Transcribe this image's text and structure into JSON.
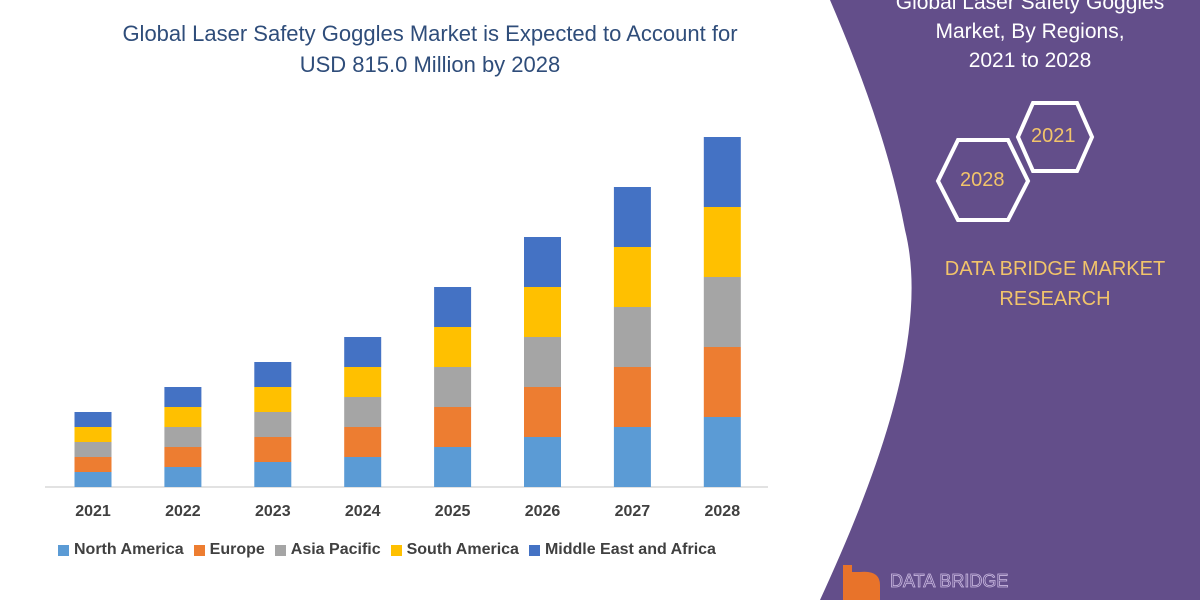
{
  "title_lines": [
    "Global Laser Safety Goggles Market is Expected to Account for",
    "USD 815.0 Million by 2028"
  ],
  "side_panel": {
    "title_lines": [
      "Global Laser Safety Goggles",
      "Market, By Regions,",
      "2021 to 2028"
    ],
    "hex_labels": [
      "2021",
      "2028"
    ],
    "brand_lines": [
      "DATA BRIDGE MARKET",
      "RESEARCH"
    ],
    "logo_text": "DATA BRIDGE",
    "panel_color": "#634e8a",
    "accent_color": "#f2c46a"
  },
  "chart_data": {
    "type": "bar",
    "stacked": true,
    "categories": [
      "2021",
      "2022",
      "2023",
      "2024",
      "2025",
      "2026",
      "2027",
      "2028"
    ],
    "series": [
      {
        "name": "North America",
        "color": "#5b9bd5",
        "values": [
          15,
          20,
          25,
          30,
          40,
          50,
          60,
          70
        ]
      },
      {
        "name": "Europe",
        "color": "#ed7d31",
        "values": [
          15,
          20,
          25,
          30,
          40,
          50,
          60,
          70
        ]
      },
      {
        "name": "Asia Pacific",
        "color": "#a5a5a5",
        "values": [
          15,
          20,
          25,
          30,
          40,
          50,
          60,
          70
        ]
      },
      {
        "name": "South America",
        "color": "#ffc000",
        "values": [
          15,
          20,
          25,
          30,
          40,
          50,
          60,
          70
        ]
      },
      {
        "name": "Middle East and Africa",
        "color": "#4472c4",
        "values": [
          15,
          20,
          25,
          30,
          40,
          50,
          60,
          70
        ]
      }
    ],
    "y_axis_shown": false,
    "grid": false,
    "legend_position": "bottom"
  }
}
